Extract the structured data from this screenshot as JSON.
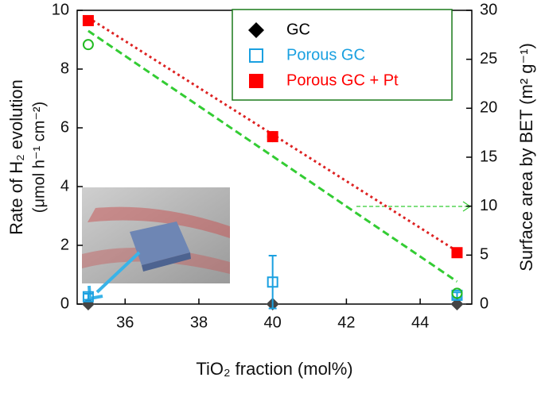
{
  "chart_data": {
    "type": "scatter",
    "xlabel": "TiO₂ fraction (mol%)",
    "ylabel": [
      "Rate of H₂ evolution",
      "(μmol h⁻¹ cm⁻²)"
    ],
    "y2label": "Surface area by BET (m² g⁻¹)",
    "x": [
      35,
      40,
      45
    ],
    "xlim": [
      34.7,
      45.4
    ],
    "xticks": [
      36,
      38,
      40,
      42,
      44
    ],
    "ylim": [
      0,
      10
    ],
    "yticks": [
      0,
      2,
      4,
      6,
      8,
      10
    ],
    "y2lim": [
      0,
      30
    ],
    "y2ticks": [
      0,
      5,
      10,
      15,
      20,
      25,
      30
    ],
    "legend": "upper right",
    "series": [
      {
        "name": "GC",
        "color": "#444444",
        "legend_color": "#000000",
        "marker": "diamond",
        "values": [
          0,
          0,
          0
        ]
      },
      {
        "name": "Porous GC",
        "color": "#1aa0e0",
        "marker": "square-open",
        "values": [
          0.25,
          0.75,
          0.3
        ],
        "errors": [
          0.1,
          0.9,
          0.1
        ]
      },
      {
        "name": "Porous GC + Pt",
        "color": "#ff0000",
        "marker": "square",
        "values": [
          9.65,
          5.7,
          1.75
        ]
      },
      {
        "color": "#22bb22",
        "marker": "circle-open",
        "axis": "y2",
        "values": [
          26.5,
          17.1,
          1.1
        ]
      },
      {
        "color": "#dd2222",
        "style": "dotted",
        "x": [
          35,
          45
        ],
        "values": [
          9.75,
          1.8
        ]
      },
      {
        "color": "#33cc33",
        "style": "dashed",
        "axis": "y2",
        "x": [
          35,
          45
        ],
        "values": [
          27.9,
          2.3
        ]
      }
    ]
  }
}
